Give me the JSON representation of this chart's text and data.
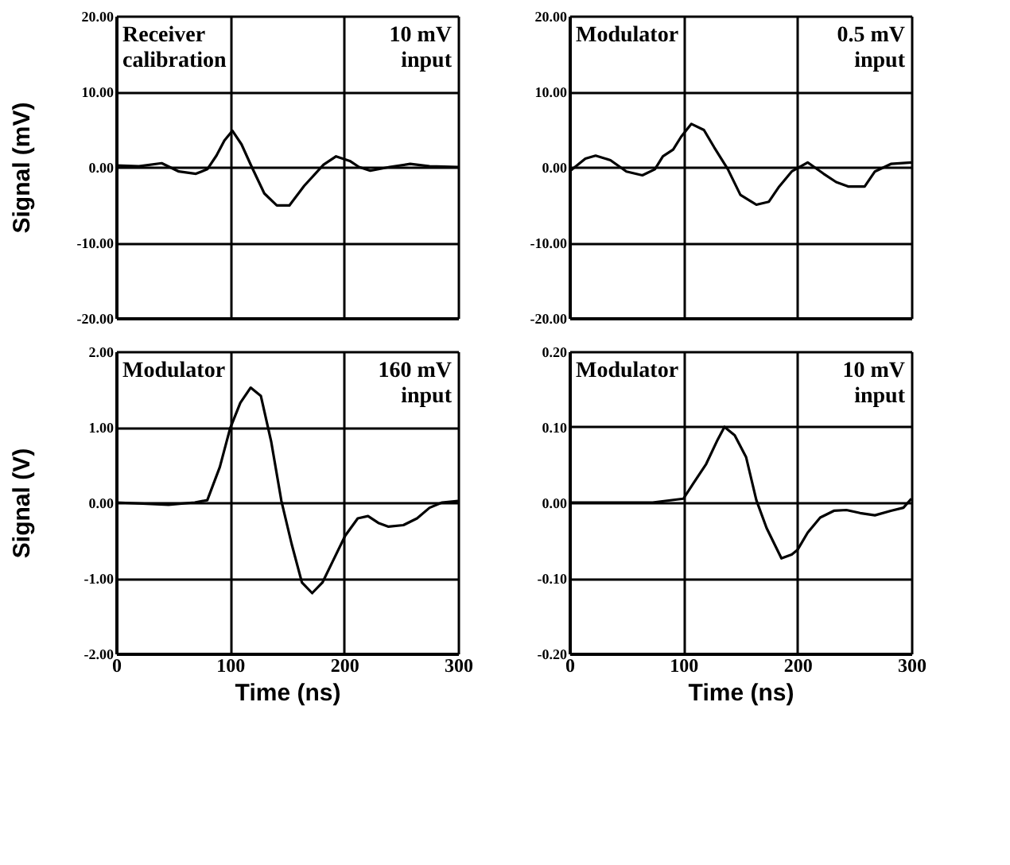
{
  "chart_data": [
    {
      "type": "line",
      "ylabel": "Signal (mV)",
      "annotations": [
        "Receiver\ncalibration",
        "10 mV\ninput"
      ],
      "grid": true,
      "tick_labels": "y",
      "xlim": [
        0,
        300
      ],
      "xticks": [
        0,
        100,
        200,
        300
      ],
      "ylim": [
        -20,
        20
      ],
      "yticks": [
        {
          "value": -20,
          "label": "-20.00"
        },
        {
          "value": -10,
          "label": "-10.00"
        },
        {
          "value": 0,
          "label": "0.00"
        },
        {
          "value": 10,
          "label": "10.00"
        },
        {
          "value": 20,
          "label": "20.00"
        }
      ],
      "series": [
        {
          "color": "#000000",
          "x": [
            0,
            20,
            40,
            55,
            70,
            80,
            88,
            95,
            102,
            110,
            119,
            130,
            141,
            152,
            165,
            182,
            193,
            205,
            213,
            223,
            240,
            258,
            275,
            300
          ],
          "values": [
            0.2,
            0.1,
            0.5,
            -0.6,
            -0.9,
            -0.3,
            1.5,
            3.5,
            4.8,
            3,
            0,
            -3.5,
            -5.1,
            -5.1,
            -2.5,
            0.3,
            1.4,
            0.8,
            0,
            -0.5,
            0,
            0.4,
            0.1,
            0
          ]
        }
      ]
    },
    {
      "type": "line",
      "annotations": [
        "Modulator",
        "0.5 mV\ninput"
      ],
      "grid": true,
      "tick_labels": "y",
      "xlim": [
        0,
        300
      ],
      "xticks": [
        0,
        100,
        200,
        300
      ],
      "ylim": [
        -20,
        20
      ],
      "yticks": [
        {
          "value": -20,
          "label": "-20.00"
        },
        {
          "value": -10,
          "label": "-10.00"
        },
        {
          "value": 0,
          "label": "0.00"
        },
        {
          "value": 10,
          "label": "10.00"
        },
        {
          "value": 20,
          "label": "20.00"
        }
      ],
      "series": [
        {
          "color": "#000000",
          "x": [
            0,
            14,
            23,
            36,
            50,
            64,
            75,
            82,
            91,
            98,
            107,
            118,
            127,
            139,
            150,
            164,
            175,
            184,
            195,
            209,
            223,
            234,
            245,
            259,
            268,
            282,
            300
          ],
          "values": [
            -0.6,
            1.1,
            1.5,
            0.9,
            -0.6,
            -1.1,
            -0.3,
            1.4,
            2.3,
            4.0,
            5.7,
            4.9,
            2.6,
            -0.3,
            -3.7,
            -5.0,
            -4.6,
            -2.6,
            -0.6,
            0.6,
            -0.9,
            -2.0,
            -2.6,
            -2.6,
            -0.6,
            0.4,
            0.6
          ]
        }
      ]
    },
    {
      "type": "line",
      "ylabel": "Signal (V)",
      "xlabel": "Time (ns)",
      "annotations": [
        "Modulator",
        "160 mV\ninput"
      ],
      "grid": true,
      "xlim": [
        0,
        300
      ],
      "xticks": [
        0,
        100,
        200,
        300
      ],
      "ylim": [
        -2,
        2
      ],
      "yticks": [
        {
          "value": -2,
          "label": "-2.00"
        },
        {
          "value": -1,
          "label": "-1.00"
        },
        {
          "value": 0,
          "label": "0.00"
        },
        {
          "value": 1,
          "label": "1.00"
        },
        {
          "value": 2,
          "label": "2.00"
        }
      ],
      "series": [
        {
          "color": "#000000",
          "x": [
            0,
            46,
            69,
            80,
            91,
            100,
            109,
            118,
            127,
            136,
            145,
            154,
            163,
            172,
            181,
            190,
            201,
            212,
            221,
            230,
            239,
            252,
            264,
            275,
            286,
            300
          ],
          "values": [
            0,
            -0.03,
            0,
            0.03,
            0.47,
            0.98,
            1.32,
            1.52,
            1.41,
            0.81,
            0.02,
            -0.55,
            -1.06,
            -1.2,
            -1.06,
            -0.78,
            -0.44,
            -0.21,
            -0.18,
            -0.27,
            -0.32,
            -0.3,
            -0.21,
            -0.07,
            0,
            0.02
          ]
        }
      ]
    },
    {
      "type": "line",
      "xlabel": "Time (ns)",
      "annotations": [
        "Modulator",
        "10 mV\ninput"
      ],
      "grid": true,
      "xlim": [
        0,
        300
      ],
      "xticks": [
        0,
        100,
        200,
        300
      ],
      "ylim": [
        -0.2,
        0.2
      ],
      "yticks": [
        {
          "value": -0.2,
          "label": "-0.20"
        },
        {
          "value": -0.1,
          "label": "-0.10"
        },
        {
          "value": 0,
          "label": "0.00"
        },
        {
          "value": 0.1,
          "label": "0.10"
        },
        {
          "value": 0.2,
          "label": "0.20"
        }
      ],
      "series": [
        {
          "color": "#000000",
          "x": [
            0,
            73,
            100,
            109,
            120,
            130,
            136,
            145,
            155,
            164,
            173,
            186,
            195,
            200,
            209,
            220,
            232,
            243,
            255,
            268,
            282,
            293,
            300
          ],
          "values": [
            0,
            0,
            0.005,
            0.026,
            0.051,
            0.083,
            0.1,
            0.089,
            0.06,
            0.003,
            -0.034,
            -0.074,
            -0.069,
            -0.063,
            -0.04,
            -0.02,
            -0.011,
            -0.01,
            -0.014,
            -0.017,
            -0.011,
            -0.007,
            0.005
          ]
        }
      ]
    }
  ]
}
